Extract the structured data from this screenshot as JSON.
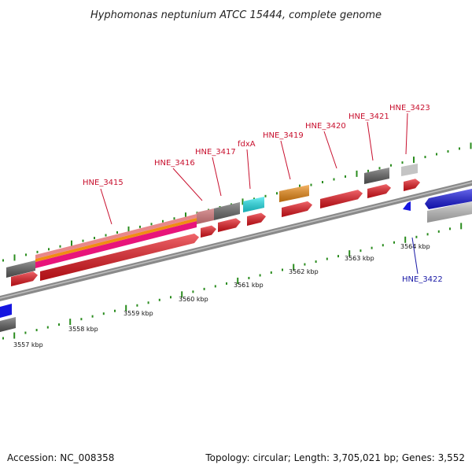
{
  "title": "Hyphomonas neptunium ATCC 15444, complete genome",
  "footer": {
    "accession": "Accession: NC_008358",
    "summary": "Topology: circular; Length: 3,705,021 bp; Genes: 3,552"
  },
  "colors": {
    "cds": "#e8141c",
    "gene_gray": "#5f5f5f",
    "gene_lightgray": "#c4c4c4",
    "gene_pink": "#e8878a",
    "gene_cyan": "#22e6ee",
    "gene_orange": "#f08c14",
    "gene_blue": "#1616e0",
    "tick_green": "#2a8c1e",
    "label_red": "#c8102e",
    "label_blue": "#1a1aa6"
  },
  "scale_labels": [
    "3557 kbp",
    "3558 kbp",
    "3559 kbp",
    "3560 kbp",
    "3561 kbp",
    "3562 kbp",
    "3563 kbp",
    "3564 kbp"
  ],
  "gene_labels": [
    {
      "name": "HNE_3415",
      "strand": "+"
    },
    {
      "name": "HNE_3416",
      "strand": "+"
    },
    {
      "name": "HNE_3417",
      "strand": "+"
    },
    {
      "name": "fdxA",
      "strand": "+"
    },
    {
      "name": "HNE_3419",
      "strand": "+"
    },
    {
      "name": "HNE_3420",
      "strand": "+"
    },
    {
      "name": "HNE_3421",
      "strand": "+"
    },
    {
      "name": "HNE_3423",
      "strand": "+"
    },
    {
      "name": "HNE_3422",
      "strand": "-"
    }
  ]
}
